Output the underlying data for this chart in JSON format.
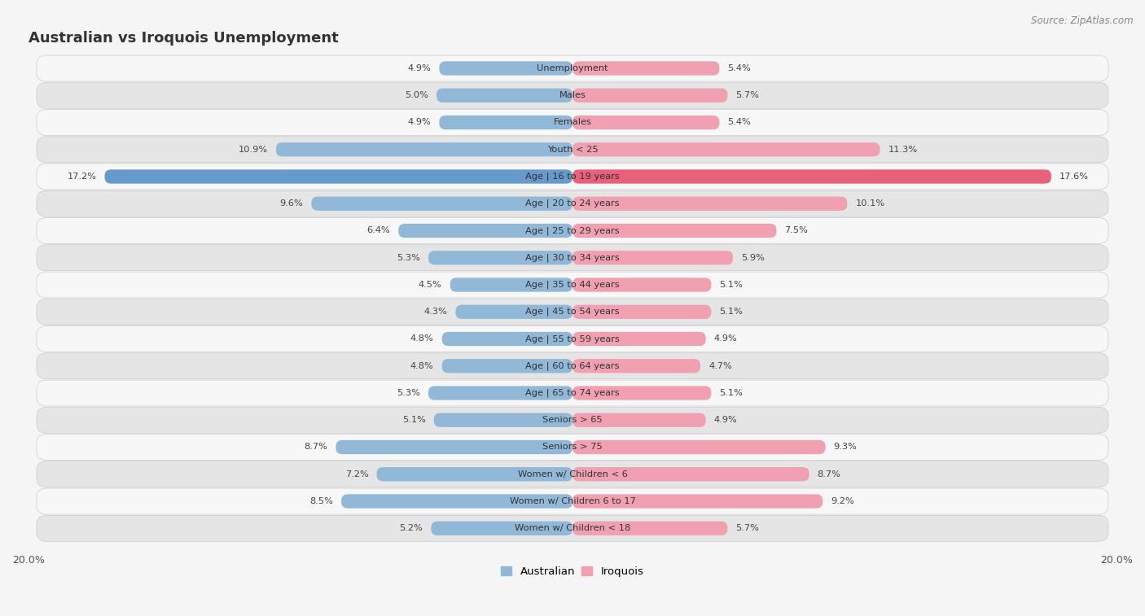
{
  "title": "Australian vs Iroquois Unemployment",
  "source": "Source: ZipAtlas.com",
  "categories": [
    "Unemployment",
    "Males",
    "Females",
    "Youth < 25",
    "Age | 16 to 19 years",
    "Age | 20 to 24 years",
    "Age | 25 to 29 years",
    "Age | 30 to 34 years",
    "Age | 35 to 44 years",
    "Age | 45 to 54 years",
    "Age | 55 to 59 years",
    "Age | 60 to 64 years",
    "Age | 65 to 74 years",
    "Seniors > 65",
    "Seniors > 75",
    "Women w/ Children < 6",
    "Women w/ Children 6 to 17",
    "Women w/ Children < 18"
  ],
  "australian": [
    4.9,
    5.0,
    4.9,
    10.9,
    17.2,
    9.6,
    6.4,
    5.3,
    4.5,
    4.3,
    4.8,
    4.8,
    5.3,
    5.1,
    8.7,
    7.2,
    8.5,
    5.2
  ],
  "iroquois": [
    5.4,
    5.7,
    5.4,
    11.3,
    17.6,
    10.1,
    7.5,
    5.9,
    5.1,
    5.1,
    4.9,
    4.7,
    5.1,
    4.9,
    9.3,
    8.7,
    9.2,
    5.7
  ],
  "australian_color": "#92b8d8",
  "iroquois_color": "#f0a0b0",
  "highlight_australian_color": "#6699cc",
  "highlight_iroquois_color": "#e8607a",
  "background_color": "#f5f5f5",
  "row_color_light": "#f7f7f7",
  "row_color_dark": "#e5e5e5",
  "bar_height": 0.52,
  "xlim": 20.0,
  "legend_australian": "Australian",
  "legend_iroquois": "Iroquois",
  "highlight_idx": 4
}
